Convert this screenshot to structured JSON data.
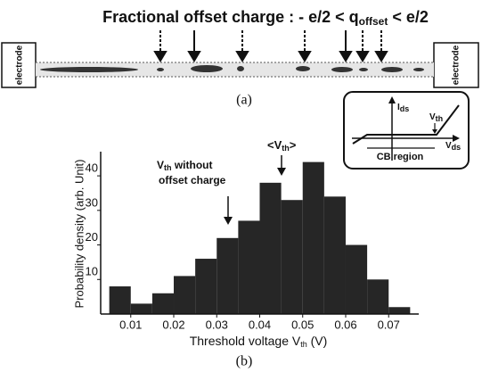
{
  "title": [
    "Fractional offset charge : - e/2 < q",
    "offset",
    " < e/2"
  ],
  "panel_a": {
    "label": "(a)",
    "left_electrode": "electrode",
    "right_electrode": "electrode"
  },
  "panel_b": {
    "label": "(b)",
    "inset": {
      "y_label": [
        "I",
        "ds"
      ],
      "x_label": [
        "V",
        "ds"
      ],
      "threshold": [
        "V",
        "th"
      ],
      "region": "CB region"
    },
    "annotations": [
      [
        "V",
        "th",
        " without",
        "offset charge"
      ],
      [
        "<V",
        "th",
        ">"
      ]
    ]
  },
  "chart_data": {
    "type": "histogram",
    "x_label": [
      "Threshold voltage V",
      "th",
      " (V)"
    ],
    "y_label": "Probability density (arb. Unit)",
    "bins": [
      0.005,
      0.01,
      0.015,
      0.02,
      0.025,
      0.03,
      0.035,
      0.04,
      0.045,
      0.05,
      0.055,
      0.06,
      0.065,
      0.07,
      0.075
    ],
    "values": [
      8,
      3,
      6,
      11,
      16,
      22,
      27,
      38,
      33,
      44,
      34,
      20,
      10,
      2
    ],
    "color": "#262626",
    "xlim": [
      0.003,
      0.077
    ],
    "xticks": [
      0.01,
      0.02,
      0.03,
      0.04,
      0.05,
      0.06,
      0.07
    ],
    "ylim": [
      0,
      47
    ],
    "yticks": [
      10,
      20,
      30,
      40
    ]
  }
}
